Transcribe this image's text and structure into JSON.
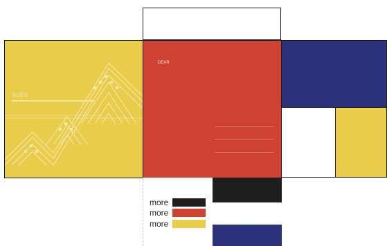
{
  "colors": {
    "yellow": "#e8cc4a",
    "red": "#cf4232",
    "blue": "#2b327b",
    "black": "#1e1e1e",
    "white": "#ffffff"
  },
  "yellow_panel": {
    "title": "SUES"
  },
  "red_panel": {
    "title": "DEAR"
  },
  "legend": [
    {
      "label": "more",
      "color": "#1e1e1e"
    },
    {
      "label": "more",
      "color": "#cf4232"
    },
    {
      "label": "more",
      "color": "#e8cc4a"
    }
  ]
}
